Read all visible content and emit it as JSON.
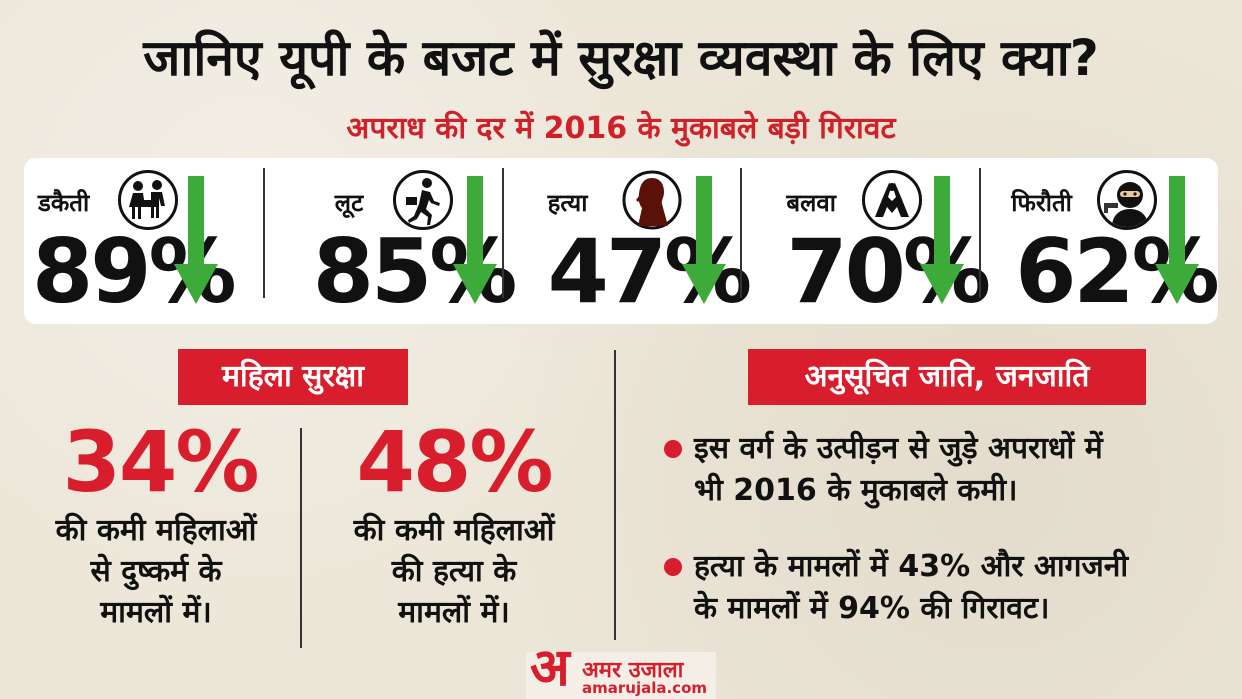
{
  "header": {
    "title": "जानिए यूपी के बजट में सुरक्षा व्यवस्था के लिए क्या?",
    "subtitle": "अपराध की दर में 2016 के मुकाबले बड़ी गिरावट"
  },
  "crime_stats": [
    {
      "label": "डकैती",
      "value": "89%",
      "icon": "robbery-icon",
      "trend": "down"
    },
    {
      "label": "लूट",
      "value": "85%",
      "icon": "loot-runner-icon",
      "trend": "down"
    },
    {
      "label": "हत्या",
      "value": "47%",
      "icon": "murder-silhouette-icon",
      "trend": "down"
    },
    {
      "label": "बलवा",
      "value": "70%",
      "icon": "riot-icon",
      "trend": "down"
    },
    {
      "label": "फिरौती",
      "value": "62%",
      "icon": "ransom-masked-icon",
      "trend": "down"
    }
  ],
  "women_safety": {
    "heading": "महिला सुरक्षा",
    "items": [
      {
        "value": "34%",
        "desc_lines": [
          "की कमी महिलाओं",
          "से दुष्कर्म के",
          "मामलों में।"
        ]
      },
      {
        "value": "48%",
        "desc_lines": [
          "की कमी महिलाओं",
          "की हत्या के",
          "मामलों में।"
        ]
      }
    ]
  },
  "sc_st": {
    "heading": "अनुसूचित जाति, जनजाति",
    "bullets": [
      {
        "lines": [
          "इस वर्ग के उत्पीड़न से जुड़े अपराधों में",
          "भी 2016 के मुकाबले कमी।"
        ]
      },
      {
        "lines": [
          "हत्या के मामलों में 43% और आगजनी",
          "के मामलों में 94% की गिरावट।"
        ]
      }
    ]
  },
  "logo": {
    "mark": "अ",
    "name": "अमर उजाला",
    "url": "amarujala.com"
  },
  "colors": {
    "accent_red": "#d81e2c",
    "arrow_green": "#3cab3a",
    "panel_white": "#ffffff"
  }
}
